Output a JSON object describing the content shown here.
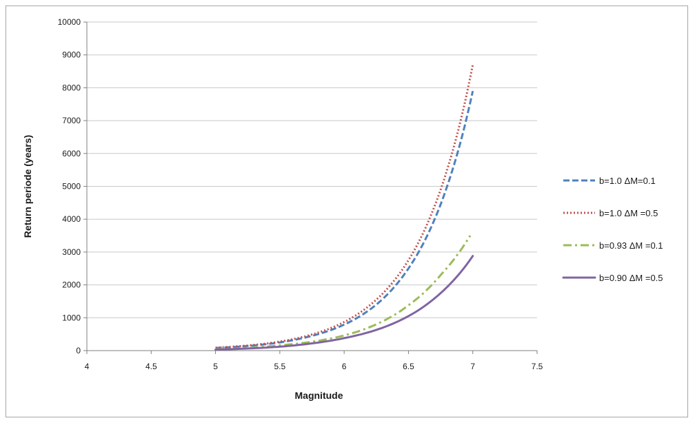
{
  "chart_data": {
    "type": "line",
    "title": "",
    "xlabel": "Magnitude",
    "ylabel": "Return periode (years)",
    "xlim": [
      4,
      7.5
    ],
    "ylim": [
      0,
      10000
    ],
    "x_ticks": [
      "4",
      "4.5",
      "5",
      "5.5",
      "6",
      "6.5",
      "7",
      "7.5"
    ],
    "y_ticks": [
      "0",
      "1000",
      "2000",
      "3000",
      "4000",
      "5000",
      "6000",
      "7000",
      "8000",
      "9000",
      "10000"
    ],
    "grid": "horizontal",
    "legend_position": "right",
    "series": [
      {
        "name": "b=1.0 ΔM=0.1",
        "color": "#4f81bd",
        "dash": "long-dash",
        "x": [
          5.0,
          5.25,
          5.5,
          5.75,
          6.0,
          6.25,
          6.5,
          6.75,
          7.0
        ],
        "y": [
          80,
          140,
          250,
          450,
          790,
          1400,
          2500,
          4450,
          7900
        ]
      },
      {
        "name": "b=1.0 ΔM =0.5",
        "color": "#c0504d",
        "dash": "dotted",
        "x": [
          5.0,
          5.25,
          5.5,
          5.75,
          6.0,
          6.25,
          6.5,
          6.75,
          7.0
        ],
        "y": [
          90,
          155,
          275,
          490,
          870,
          1550,
          2750,
          4900,
          8700
        ]
      },
      {
        "name": "b=0.93 ΔM =0.1",
        "color": "#9bbb59",
        "dash": "dash-dot",
        "x": [
          5.0,
          5.25,
          5.5,
          5.75,
          6.0,
          6.25,
          6.5,
          6.75,
          6.98
        ],
        "y": [
          40,
          80,
          160,
          270,
          460,
          800,
          1380,
          2300,
          3500
        ]
      },
      {
        "name": "b=0.90 ΔM =0.5",
        "color": "#8064a2",
        "dash": "solid",
        "x": [
          5.0,
          5.25,
          5.5,
          5.75,
          6.0,
          6.25,
          6.5,
          6.75,
          7.0
        ],
        "y": [
          30,
          65,
          120,
          220,
          380,
          630,
          1050,
          1750,
          2880
        ]
      }
    ]
  }
}
